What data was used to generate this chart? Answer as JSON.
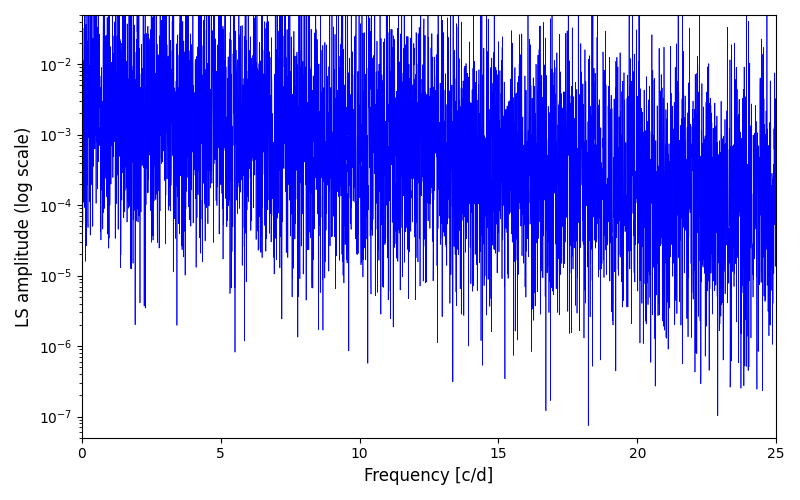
{
  "xlabel": "Frequency [c/d]",
  "ylabel": "LS amplitude (log scale)",
  "xmin": 0,
  "xmax": 25,
  "ymin": 5e-08,
  "ymax": 0.05,
  "line_color": "#0000ff",
  "line_width": 0.5,
  "background_color": "#ffffff",
  "seed": 7,
  "n_points": 5000
}
